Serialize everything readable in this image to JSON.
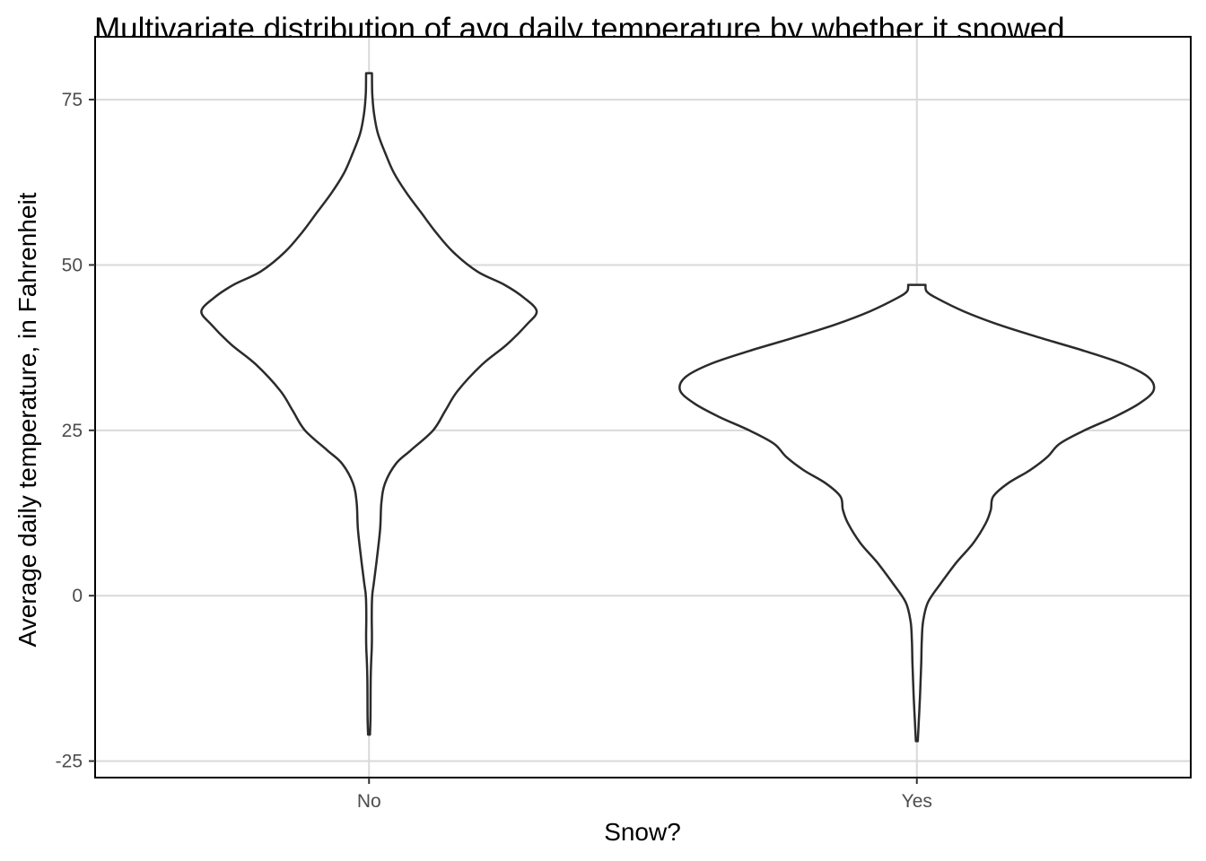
{
  "chart_data": {
    "type": "violin",
    "title": "Multivariate distribution of avg daily temperature by whether it snowed",
    "xlabel": "Snow?",
    "ylabel": "Average daily temperature, in Fahrenheit",
    "categories": [
      "No",
      "Yes"
    ],
    "ylim": [
      -27.5,
      84.5
    ],
    "yticks": [
      -25,
      0,
      25,
      50,
      75
    ],
    "grid": true,
    "legend": "none",
    "colors": {
      "outline": "#2b2b2b",
      "fill": "#ffffff",
      "grid": "#d9d9d9",
      "axis": "#000000"
    },
    "series": [
      {
        "category": "No",
        "min": -21,
        "max": 79,
        "profile": [
          [
            -21,
            0.004
          ],
          [
            -18,
            0.006
          ],
          [
            -12,
            0.007
          ],
          [
            -8,
            0.011
          ],
          [
            -6,
            0.012
          ],
          [
            -3,
            0.011
          ],
          [
            0,
            0.013
          ],
          [
            2,
            0.02
          ],
          [
            5,
            0.03
          ],
          [
            10,
            0.045
          ],
          [
            14,
            0.05
          ],
          [
            17,
            0.065
          ],
          [
            20,
            0.11
          ],
          [
            22,
            0.17
          ],
          [
            25,
            0.26
          ],
          [
            28,
            0.31
          ],
          [
            31,
            0.36
          ],
          [
            35,
            0.46
          ],
          [
            38,
            0.56
          ],
          [
            41,
            0.64
          ],
          [
            43,
            0.68
          ],
          [
            45,
            0.63
          ],
          [
            47,
            0.55
          ],
          [
            49,
            0.44
          ],
          [
            52,
            0.34
          ],
          [
            55,
            0.27
          ],
          [
            58,
            0.21
          ],
          [
            61,
            0.15
          ],
          [
            64,
            0.1
          ],
          [
            67,
            0.065
          ],
          [
            70,
            0.035
          ],
          [
            73,
            0.02
          ],
          [
            76,
            0.013
          ],
          [
            79,
            0.012
          ]
        ]
      },
      {
        "category": "Yes",
        "min": -22,
        "max": 47,
        "profile": [
          [
            -22,
            0.004
          ],
          [
            -19,
            0.008
          ],
          [
            -16,
            0.012
          ],
          [
            -13,
            0.015
          ],
          [
            -10,
            0.018
          ],
          [
            -7,
            0.02
          ],
          [
            -4,
            0.025
          ],
          [
            -1,
            0.045
          ],
          [
            2,
            0.1
          ],
          [
            5,
            0.16
          ],
          [
            8,
            0.23
          ],
          [
            11,
            0.28
          ],
          [
            13,
            0.3
          ],
          [
            15,
            0.31
          ],
          [
            17,
            0.37
          ],
          [
            19,
            0.46
          ],
          [
            21,
            0.53
          ],
          [
            23,
            0.58
          ],
          [
            25,
            0.68
          ],
          [
            27,
            0.8
          ],
          [
            29,
            0.9
          ],
          [
            31,
            0.96
          ],
          [
            33,
            0.94
          ],
          [
            35,
            0.84
          ],
          [
            37,
            0.68
          ],
          [
            39,
            0.5
          ],
          [
            41,
            0.33
          ],
          [
            43,
            0.19
          ],
          [
            45,
            0.08
          ],
          [
            46,
            0.04
          ],
          [
            47,
            0.035
          ]
        ]
      }
    ]
  }
}
